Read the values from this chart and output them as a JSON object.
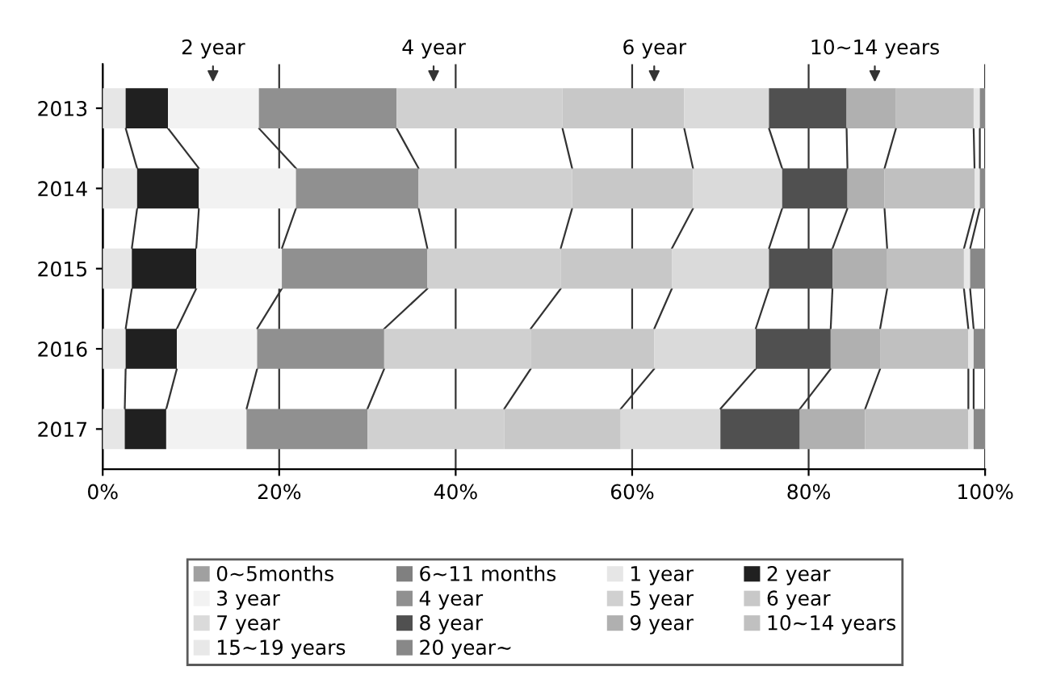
{
  "chart_data": {
    "type": "bar",
    "orientation": "horizontal",
    "stacked": true,
    "categories": [
      "2013",
      "2014",
      "2015",
      "2016",
      "2017"
    ],
    "series": [
      {
        "name": "0~5months",
        "color": "#a0a0a0",
        "values": [
          0,
          0,
          0,
          0,
          0
        ]
      },
      {
        "name": "6~11 months",
        "color": "#808080",
        "values": [
          0,
          0,
          0,
          0,
          0
        ]
      },
      {
        "name": "1 year",
        "color": "#e6e6e6",
        "values": [
          2.6,
          3.9,
          3.3,
          2.6,
          2.5
        ]
      },
      {
        "name": "2 year",
        "color": "#202020",
        "values": [
          4.8,
          7.0,
          7.3,
          5.8,
          4.7
        ]
      },
      {
        "name": "3 year",
        "color": "#f2f2f2",
        "values": [
          10.3,
          11.0,
          9.7,
          9.1,
          9.1
        ]
      },
      {
        "name": "4 year",
        "color": "#909090",
        "values": [
          15.6,
          13.9,
          16.5,
          14.4,
          13.7
        ]
      },
      {
        "name": "5 year",
        "color": "#d0d0d0",
        "values": [
          18.8,
          17.4,
          15.1,
          16.6,
          15.5
        ]
      },
      {
        "name": "6 year",
        "color": "#c8c8c8",
        "values": [
          13.8,
          13.7,
          12.6,
          14.0,
          13.2
        ]
      },
      {
        "name": "7 year",
        "color": "#dadada",
        "values": [
          9.6,
          10.1,
          11.0,
          11.5,
          11.3
        ]
      },
      {
        "name": "8 year",
        "color": "#505050",
        "values": [
          8.8,
          7.4,
          7.2,
          8.5,
          9.0
        ]
      },
      {
        "name": "9 year",
        "color": "#b0b0b0",
        "values": [
          5.6,
          4.2,
          6.2,
          5.6,
          7.4
        ]
      },
      {
        "name": "10~14 years",
        "color": "#c0c0c0",
        "values": [
          8.8,
          10.2,
          8.7,
          10.0,
          11.7
        ]
      },
      {
        "name": "15~19 years",
        "color": "#e8e8e8",
        "values": [
          0.7,
          0.6,
          0.7,
          0.6,
          0.6
        ]
      },
      {
        "name": "20 year~",
        "color": "#888888",
        "values": [
          0.6,
          0.6,
          1.7,
          1.3,
          1.3
        ]
      }
    ],
    "xlim": [
      0,
      100
    ],
    "xticks": [
      {
        "value": 0,
        "label": "0%"
      },
      {
        "value": 20,
        "label": "20%"
      },
      {
        "value": 40,
        "label": "40%"
      },
      {
        "value": 60,
        "label": "60%"
      },
      {
        "value": 80,
        "label": "80%"
      },
      {
        "value": 100,
        "label": "100%"
      }
    ],
    "grid": "x",
    "legend": "bottom",
    "annotations": [
      "2 year",
      "4 year",
      "6 year",
      "10~14 years"
    ]
  }
}
